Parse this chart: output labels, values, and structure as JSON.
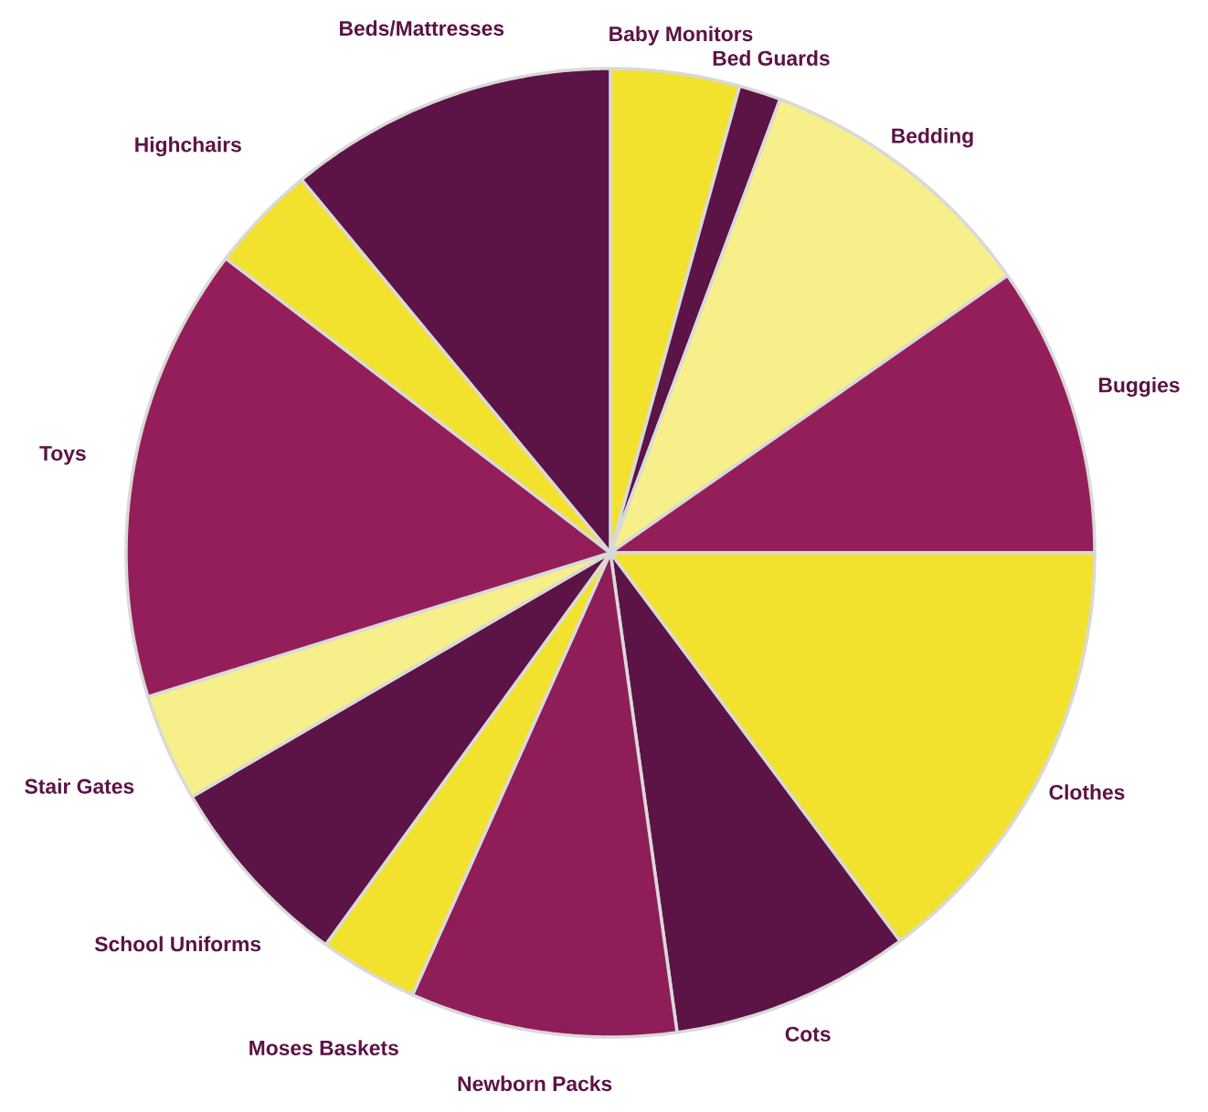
{
  "chart_data": {
    "type": "pie",
    "categories": [
      "Baby Monitors",
      "Bed Guards",
      "Bedding",
      "Buggies",
      "Clothes",
      "Cots",
      "Newborn Packs",
      "Moses Baskets",
      "School Uniforms",
      "Stair Gates",
      "Toys",
      "Highchairs",
      "Beds/Mattresses"
    ],
    "values": [
      4.3,
      1.4,
      9.6,
      9.7,
      14.8,
      8.0,
      8.9,
      3.3,
      6.6,
      3.6,
      15.2,
      3.6,
      11.0
    ],
    "colors": [
      "#f2e22e",
      "#5c1346",
      "#f7ef8a",
      "#941e5a",
      "#f2e22e",
      "#5c1346",
      "#8e1d58",
      "#f2e22e",
      "#5c1346",
      "#f7ef8a",
      "#941e5a",
      "#f2e22e",
      "#5c1346"
    ]
  }
}
